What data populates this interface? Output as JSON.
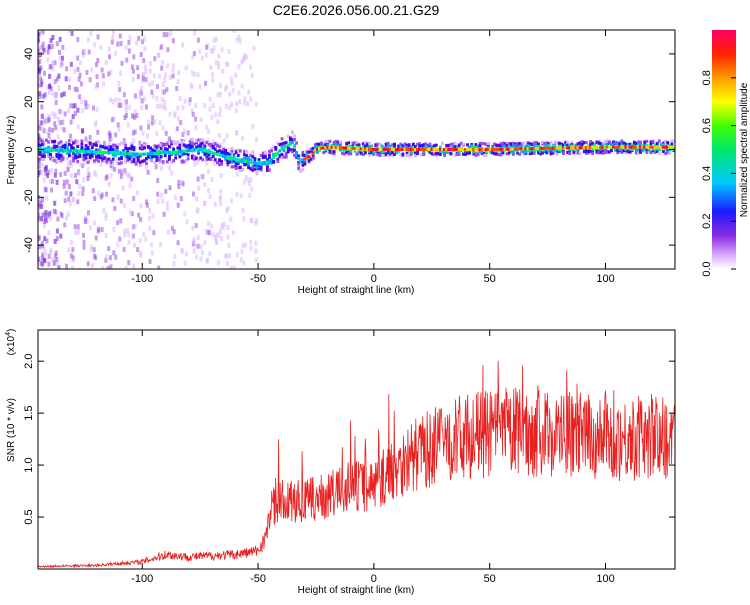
{
  "title": "C2E6.2026.056.00.21.G29",
  "chart_data": [
    {
      "type": "heatmap",
      "xlabel": "Height of straight line (km)",
      "ylabel": "Frequency (Hz)",
      "xlim": [
        -145,
        130
      ],
      "ylim": [
        -50,
        50
      ],
      "xticks": [
        -100,
        -50,
        0,
        50,
        100
      ],
      "xtick_labels": [
        "-100",
        "-50",
        "0",
        "50",
        "100"
      ],
      "yticks": [
        -40,
        -20,
        0,
        20,
        40
      ],
      "ytick_labels": [
        "-40",
        "-20",
        "0",
        "20",
        "40"
      ],
      "colorbar": {
        "label": "Normalized spectral amplitude",
        "range": [
          0,
          1
        ],
        "ticks": [
          0.0,
          0.2,
          0.4,
          0.6,
          0.8
        ],
        "tick_labels": [
          "0.0",
          "0.2",
          "0.4",
          "0.6",
          "0.8"
        ],
        "colors": [
          "#ffffff",
          "#cc88ff",
          "#6600cc",
          "#0000ff",
          "#00c8ff",
          "#00ff00",
          "#ffff00",
          "#ff8800",
          "#ff0000",
          "#ff0066"
        ]
      },
      "ridge": {
        "x": [
          -145,
          -120,
          -100,
          -85,
          -75,
          -60,
          -50,
          -45,
          -40,
          -35,
          -32,
          -28,
          -25,
          -20,
          0,
          50,
          100,
          130
        ],
        "frequency": [
          0,
          -1,
          -2,
          -1,
          0,
          -4,
          -6,
          -5,
          0,
          3,
          -5,
          -3,
          0,
          1,
          0,
          0,
          1,
          1
        ]
      }
    },
    {
      "type": "line",
      "xlabel": "Height of straight line (km)",
      "ylabel": "SNR (10 * v/v)",
      "y_multiplier": "(x10",
      "y_multiplier_exp": "4",
      "xlim": [
        -145,
        130
      ],
      "ylim": [
        0,
        2.3
      ],
      "xticks": [
        -100,
        -50,
        0,
        50,
        100
      ],
      "xtick_labels": [
        "-100",
        "-50",
        "0",
        "50",
        "100"
      ],
      "yticks": [
        0.5,
        1.0,
        1.5,
        2.0
      ],
      "ytick_labels": [
        "0.5",
        "1.0",
        "1.5",
        "2.0"
      ],
      "series": [
        {
          "color": "#e82020",
          "envelope_x": [
            -145,
            -120,
            -100,
            -90,
            -80,
            -60,
            -50,
            -46,
            -44,
            -40,
            -30,
            -20,
            -10,
            0,
            10,
            20,
            30,
            40,
            50,
            60,
            70,
            80,
            90,
            100,
            110,
            120,
            130
          ],
          "envelope_y": [
            0.02,
            0.03,
            0.06,
            0.12,
            0.1,
            0.12,
            0.15,
            0.3,
            0.6,
            0.65,
            0.65,
            0.7,
            0.8,
            0.8,
            1.0,
            1.12,
            1.22,
            1.28,
            1.3,
            1.33,
            1.3,
            1.3,
            1.28,
            1.25,
            1.25,
            1.28,
            1.25
          ]
        }
      ]
    }
  ]
}
